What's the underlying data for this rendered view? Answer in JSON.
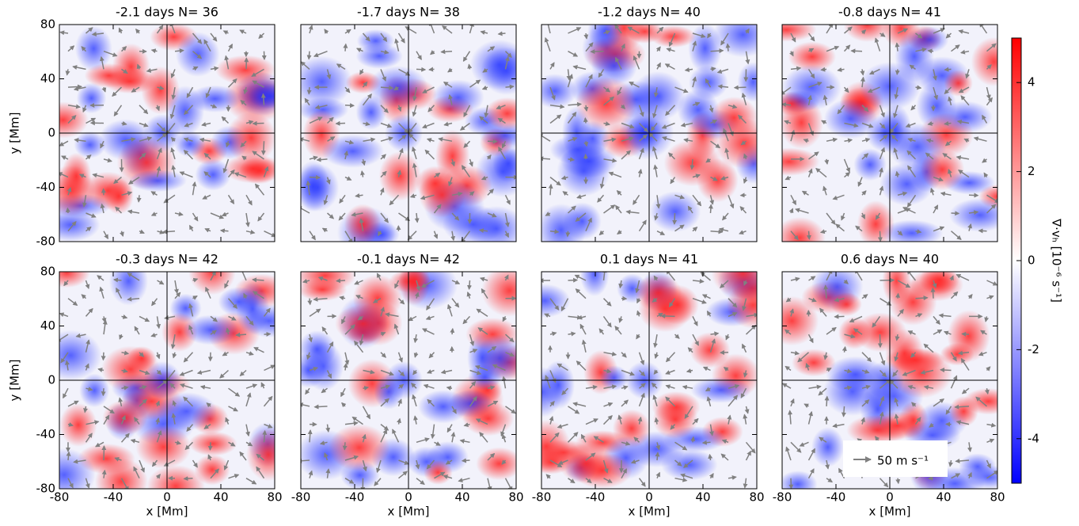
{
  "chart_data": {
    "type": "heatmap-grid",
    "panels": [
      {
        "title": "-2.1 days  N= 36"
      },
      {
        "title": "-1.7 days  N= 38"
      },
      {
        "title": "-1.2 days  N= 40"
      },
      {
        "title": "-0.8 days  N= 41"
      },
      {
        "title": "-0.3 days  N= 42"
      },
      {
        "title": "-0.1 days  N= 42"
      },
      {
        "title": "0.1 days  N= 41"
      },
      {
        "title": "0.6 days  N= 40"
      }
    ],
    "xlabel": "x [Mm]",
    "ylabel": "y [Mm]",
    "xlim": [
      -80,
      80
    ],
    "ylim": [
      -80,
      80
    ],
    "xticks": [
      -80,
      -40,
      0,
      40,
      80
    ],
    "yticks": [
      -80,
      -40,
      0,
      40,
      80
    ],
    "colorbar": {
      "label": "∇·vₕ [10⁻⁶ s⁻¹]",
      "lim": [
        -5,
        5
      ],
      "ticks": [
        -4,
        -2,
        0,
        2,
        4
      ],
      "colors": [
        "#0000ff",
        "#ffffff",
        "#ff0000"
      ]
    },
    "legend": "50 m s⁻¹"
  }
}
